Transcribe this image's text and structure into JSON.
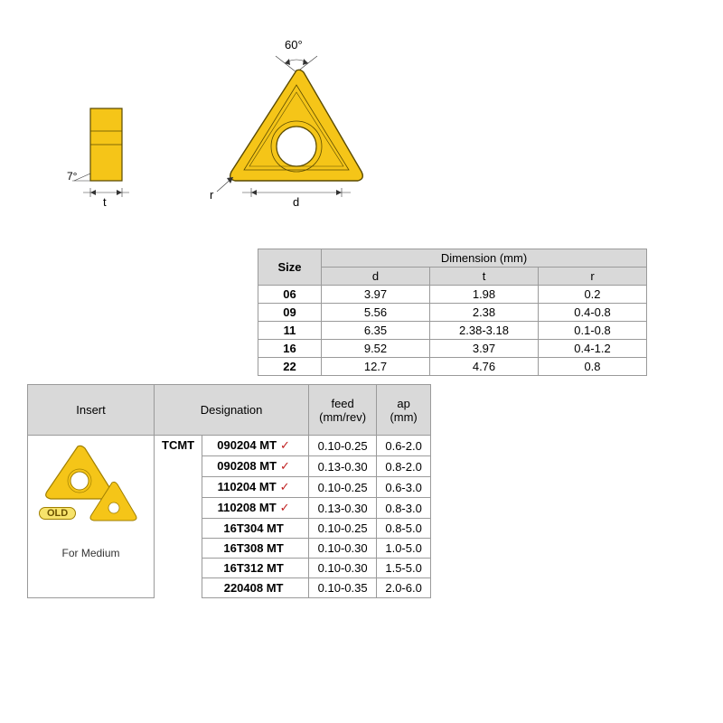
{
  "diagram": {
    "angle_top": "60°",
    "angle_side": "7°",
    "label_t": "t",
    "label_d": "d",
    "label_r": "r",
    "fill_color": "#f5c518",
    "stroke_color": "#5a4a00"
  },
  "dim_table": {
    "header_size": "Size",
    "header_dimension": "Dimension (mm)",
    "subheaders": [
      "d",
      "t",
      "r"
    ],
    "rows": [
      {
        "size": "06",
        "d": "3.97",
        "t": "1.98",
        "r": "0.2"
      },
      {
        "size": "09",
        "d": "5.56",
        "t": "2.38",
        "r": "0.4-0.8"
      },
      {
        "size": "11",
        "d": "6.35",
        "t": "2.38-3.18",
        "r": "0.1-0.8"
      },
      {
        "size": "16",
        "d": "9.52",
        "t": "3.97",
        "r": "0.4-1.2"
      },
      {
        "size": "22",
        "d": "12.7",
        "t": "4.76",
        "r": "0.8"
      }
    ]
  },
  "insert_table": {
    "headers": {
      "insert": "Insert",
      "designation": "Designation",
      "feed": "feed\n(mm/rev)",
      "ap": "ap\n(mm)"
    },
    "type_label": "TCMT",
    "badge_old": "OLD",
    "for_medium": "For Medium",
    "rows": [
      {
        "desig": "090204 MT",
        "check": true,
        "feed": "0.10-0.25",
        "ap": "0.6-2.0"
      },
      {
        "desig": "090208 MT",
        "check": true,
        "feed": "0.13-0.30",
        "ap": "0.8-2.0"
      },
      {
        "desig": "110204 MT",
        "check": true,
        "feed": "0.10-0.25",
        "ap": "0.6-3.0"
      },
      {
        "desig": "110208 MT",
        "check": true,
        "feed": "0.13-0.30",
        "ap": "0.8-3.0"
      },
      {
        "desig": "16T304 MT",
        "check": false,
        "feed": "0.10-0.25",
        "ap": "0.8-5.0"
      },
      {
        "desig": "16T308 MT",
        "check": false,
        "feed": "0.10-0.30",
        "ap": "1.0-5.0"
      },
      {
        "desig": "16T312 MT",
        "check": false,
        "feed": "0.10-0.30",
        "ap": "1.5-5.0"
      },
      {
        "desig": "220408 MT",
        "check": false,
        "feed": "0.10-0.35",
        "ap": "2.0-6.0"
      }
    ]
  }
}
